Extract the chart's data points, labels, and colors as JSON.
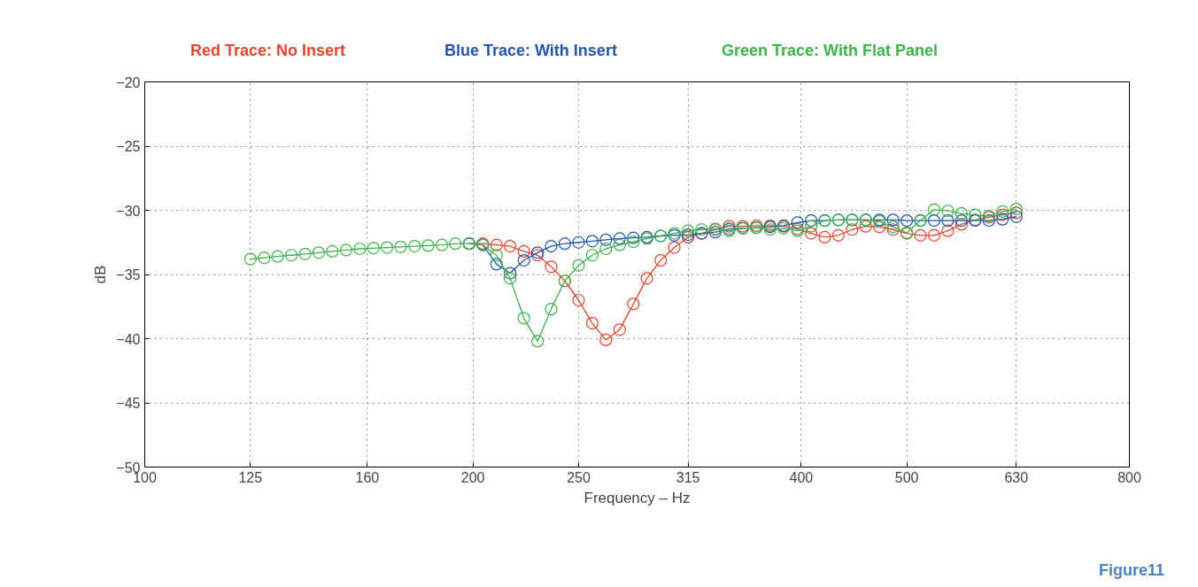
{
  "chart_data": {
    "type": "line",
    "xlabel": "Frequency – Hz",
    "ylabel": "dB",
    "log": "x",
    "grid": true,
    "marker": "circle",
    "line_style": "solid",
    "xlim": [
      100,
      800
    ],
    "xticks": [
      100,
      125,
      160,
      200,
      250,
      315,
      400,
      500,
      630,
      800
    ],
    "ylim": [
      -50,
      -20
    ],
    "yticks": [
      {
        "value": -50,
        "label": "−50"
      },
      {
        "value": -45,
        "label": "−45"
      },
      {
        "value": -40,
        "label": "−40"
      },
      {
        "value": -35,
        "label": "−35"
      },
      {
        "value": -30,
        "label": "−30"
      },
      {
        "value": -25,
        "label": "−25"
      },
      {
        "value": -20,
        "label": "−20"
      }
    ],
    "x": [
      125.0,
      128.7,
      132.4,
      136.3,
      140.3,
      144.4,
      148.6,
      153.0,
      157.5,
      162.1,
      166.8,
      171.7,
      176.8,
      181.9,
      187.3,
      192.7,
      198.4,
      204.2,
      210.2,
      216.3,
      222.7,
      229.2,
      235.9,
      242.8,
      250.0,
      257.3,
      264.8,
      272.6,
      280.6,
      288.8,
      297.3,
      306.0,
      315.0,
      324.2,
      333.7,
      343.5,
      353.6,
      363.9,
      374.6,
      385.5,
      396.9,
      408.5,
      420.4,
      432.7,
      445.4,
      458.5,
      471.9,
      485.7,
      500.0,
      514.6,
      529.7,
      545.2,
      561.2,
      577.6,
      594.6,
      612.0,
      630.0
    ],
    "series": [
      {
        "name": "Red Trace: No Insert",
        "color": "#e8452c",
        "values": [
          null,
          null,
          null,
          null,
          null,
          null,
          null,
          null,
          null,
          null,
          null,
          null,
          null,
          null,
          null,
          null,
          -32.6,
          -32.6,
          -32.7,
          -32.8,
          -33.2,
          -33.5,
          -34.4,
          -35.5,
          -37.0,
          -38.8,
          -40.1,
          -39.3,
          -37.3,
          -35.3,
          -33.9,
          -32.9,
          -32.1,
          -31.8,
          -31.5,
          -31.25,
          -31.25,
          -31.2,
          -31.2,
          -31.25,
          -31.45,
          -31.8,
          -32.1,
          -31.95,
          -31.5,
          -31.25,
          -31.3,
          -31.5,
          -31.8,
          -31.95,
          -31.95,
          -31.6,
          -31.1,
          -30.75,
          -30.55,
          -30.35,
          -30.2
        ]
      },
      {
        "name": "Blue Trace: With Insert",
        "color": "#2356b0",
        "values": [
          null,
          null,
          null,
          null,
          null,
          null,
          null,
          null,
          null,
          null,
          null,
          null,
          null,
          null,
          null,
          null,
          -32.6,
          -32.7,
          -34.2,
          -34.9,
          -33.9,
          -33.3,
          -32.8,
          -32.6,
          -32.5,
          -32.4,
          -32.3,
          -32.2,
          -32.15,
          -32.1,
          -32.0,
          -31.95,
          -31.9,
          -31.8,
          -31.7,
          -31.45,
          -31.4,
          -31.35,
          -31.3,
          -31.2,
          -30.95,
          -30.8,
          -30.8,
          -30.75,
          -30.75,
          -30.75,
          -30.75,
          -30.75,
          -30.8,
          -30.8,
          -30.8,
          -30.8,
          -30.8,
          -30.8,
          -30.8,
          -30.7,
          -30.5
        ]
      },
      {
        "name": "Green Trace: With Flat Panel",
        "color": "#3cb54a",
        "values": [
          -33.8,
          -33.7,
          -33.6,
          -33.5,
          -33.4,
          -33.3,
          -33.2,
          -33.1,
          -33.0,
          -32.95,
          -32.9,
          -32.85,
          -32.8,
          -32.75,
          -32.7,
          -32.6,
          -32.6,
          -32.7,
          -33.5,
          -35.3,
          -38.4,
          -40.2,
          -37.7,
          -35.5,
          -34.3,
          -33.5,
          -33.0,
          -32.7,
          -32.45,
          -32.2,
          -32.0,
          -31.8,
          -31.6,
          -31.5,
          -31.45,
          -31.6,
          -31.4,
          -31.35,
          -31.5,
          -31.4,
          -31.6,
          -31.25,
          -30.8,
          -30.75,
          -30.75,
          -30.75,
          -30.85,
          -31.3,
          -31.75,
          -30.8,
          -29.95,
          -30.05,
          -30.25,
          -30.35,
          -30.45,
          -30.1,
          -29.9
        ]
      }
    ],
    "annotations": [
      "Figure11"
    ]
  }
}
